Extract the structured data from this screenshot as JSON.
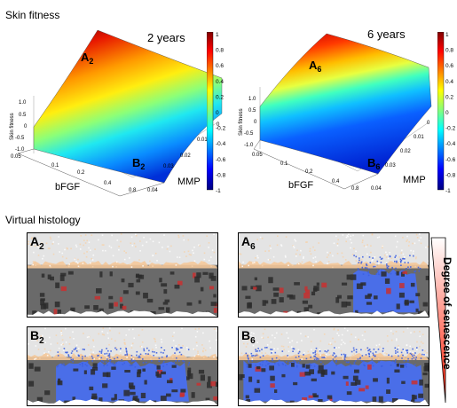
{
  "titles": {
    "skin_fitness": "Skin fitness",
    "virtual_histology": "Virtual histology",
    "senescence_label": "Degree of senescence"
  },
  "plots": [
    {
      "id": "2y",
      "year_label": "2 years",
      "z_axis_label": "Skin fitness",
      "z_ticks": [
        "1.0",
        "0.5",
        "0",
        "-0.5",
        "-1.0"
      ],
      "x_axis_label": "bFGF",
      "x_ticks": [
        "0.05",
        "0.1",
        "0.2",
        "0.4",
        "0.8"
      ],
      "y_axis_label": "MMP",
      "y_ticks": [
        "0",
        "0.01",
        "0.02",
        "0.03",
        "0.04"
      ],
      "point_top": {
        "main": "A",
        "sub": "2"
      },
      "point_bottom": {
        "main": "B",
        "sub": "2"
      }
    },
    {
      "id": "6y",
      "year_label": "6 years",
      "z_axis_label": "Skin fitness",
      "z_ticks": [
        "1.0",
        "0.5",
        "0",
        "-0.5",
        "-1.0"
      ],
      "x_axis_label": "bFGF",
      "x_ticks": [
        "0.05",
        "0.1",
        "0.2",
        "0.4",
        "0.8"
      ],
      "y_axis_label": "MMP",
      "y_ticks": [
        "0",
        "0.01",
        "0.02",
        "0.03",
        "0.04"
      ],
      "point_top": {
        "main": "A",
        "sub": "6"
      },
      "point_bottom": {
        "main": "B",
        "sub": "6"
      }
    }
  ],
  "colorbar_ticks": [
    "1",
    "0.8",
    "0.6",
    "0.4",
    "0.2",
    "0",
    "-0.2",
    "-0.4",
    "-0.6",
    "-0.8",
    "-1"
  ],
  "histology": [
    {
      "main": "A",
      "sub": "2",
      "blue_fraction": 0.0
    },
    {
      "main": "A",
      "sub": "6",
      "blue_fraction": 0.35
    },
    {
      "main": "B",
      "sub": "2",
      "blue_fraction": 0.7
    },
    {
      "main": "B",
      "sub": "6",
      "blue_fraction": 0.95
    }
  ]
}
